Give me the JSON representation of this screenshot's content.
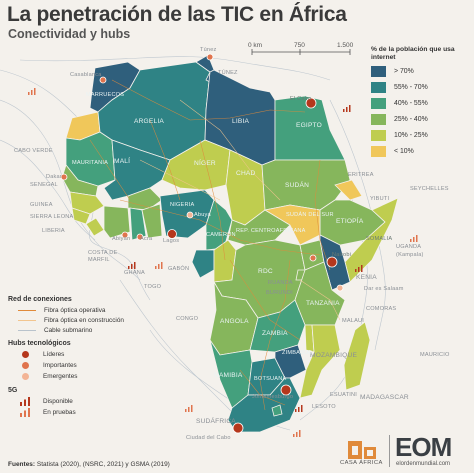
{
  "title": "La penetración de las TIC en África",
  "subtitle": "Conectividad y hubs",
  "scale": {
    "ticks": [
      "0 km",
      "750",
      "1.500"
    ]
  },
  "legend": {
    "title": "% de la población que usa internet",
    "items": [
      {
        "label": "> 70%",
        "color": "#2f5f7c"
      },
      {
        "label": "55% - 70%",
        "color": "#2f8385"
      },
      {
        "label": "40% - 55%",
        "color": "#44a07d"
      },
      {
        "label": "25% - 40%",
        "color": "#86b65c"
      },
      {
        "label": "10% - 25%",
        "color": "#bfcd4f"
      },
      {
        "label": "< 10%",
        "color": "#f0c75a"
      }
    ]
  },
  "network_legend": {
    "title": "Red de conexiones",
    "items": [
      {
        "label": "Fibra óptica operativa",
        "color": "#e08a3a"
      },
      {
        "label": "Fibra óptica en construcción",
        "color": "#f2c58f"
      },
      {
        "label": "Cable submarino",
        "color": "#b9c3cc"
      }
    ]
  },
  "hubs_legend": {
    "title": "Hubs tecnológicos",
    "items": [
      {
        "label": "Líderes",
        "color": "#b5371c"
      },
      {
        "label": "Importantes",
        "color": "#e0744d"
      },
      {
        "label": "Emergentes",
        "color": "#f3b495"
      }
    ]
  },
  "fiveg_legend": {
    "title": "5G",
    "items": [
      {
        "label": "Disponible",
        "color": "#b5371c"
      },
      {
        "label": "En pruebas",
        "color": "#e0744d"
      }
    ]
  },
  "countries": [
    {
      "name": "ARGELIA",
      "color": "#2f8385"
    },
    {
      "name": "LIBIA",
      "color": "#2f5f7c"
    },
    {
      "name": "EGIPTO",
      "color": "#44a07d"
    },
    {
      "name": "MARRUECOS",
      "color": "#2f5f7c"
    },
    {
      "name": "MALÍ",
      "color": "#2f8385"
    },
    {
      "name": "MAURITANIA",
      "color": "#44a07d"
    },
    {
      "name": "NÍGER",
      "color": "#bfcd4f"
    },
    {
      "name": "CHAD",
      "color": "#bfcd4f"
    },
    {
      "name": "SUDÁN",
      "color": "#86b65c"
    },
    {
      "name": "NIGERIA",
      "color": "#2f8385"
    },
    {
      "name": "ETIOPÍA",
      "color": "#86b65c"
    },
    {
      "name": "SUDÁN DEL SUR",
      "color": "#f0c75a"
    },
    {
      "name": "REP. CENTROAFRICANA",
      "color": "#86b65c"
    },
    {
      "name": "RDC",
      "color": "#86b65c"
    },
    {
      "name": "KENIA",
      "color": "#2f5f7c"
    },
    {
      "name": "TANZANIA",
      "color": "#86b65c"
    },
    {
      "name": "ANGOLA",
      "color": "#86b65c"
    },
    {
      "name": "ZAMBIA",
      "color": "#44a07d"
    },
    {
      "name": "NAMIBIA",
      "color": "#44a07d"
    },
    {
      "name": "SUDÁFRICA",
      "color": "#2f8385"
    },
    {
      "name": "MOZAMBIQUE",
      "color": "#bfcd4f"
    },
    {
      "name": "MADAGASCAR",
      "color": "#bfcd4f"
    },
    {
      "name": "ZIMBABUE",
      "color": "#2f5f7c"
    },
    {
      "name": "BOTSUANA",
      "color": "#2f8385"
    },
    {
      "name": "GABÓN",
      "color": "#2f8385"
    }
  ],
  "place_labels": [
    "TÚNEZ",
    "Túnez",
    "Casablanca",
    "El Cairo",
    "CABO VERDE",
    "Dakar",
    "SENEGAL",
    "GUINEA",
    "SIERRA LEONA",
    "LIBERIA",
    "COSTA DE MARFIL",
    "Abiyán",
    "Acra",
    "Lagos",
    "Abuya",
    "GHANA",
    "TOGO",
    "CAMERÚN",
    "CONGO",
    "UGANDA",
    "(Kampala)",
    "Nairobi",
    "Dar es Salaam",
    "MALAUI",
    "COMORAS",
    "MAURICIO",
    "SEYCHELLES",
    "Johannesburgo",
    "Ciudad del Cabo",
    "LESOTO",
    "ESUATINI",
    "ERITREA",
    "YIBUTI",
    "RUANDA",
    "BURUNDI",
    "SOMALIA"
  ],
  "sources": {
    "label": "Fuentes:",
    "text": "Statista (2020), (NSRC, 2021) y GSMA (2019)"
  },
  "logos": {
    "left_caption": "CASA ÁFRICA",
    "right_mark": "EOM",
    "right_caption": "elordenmundial.com"
  }
}
